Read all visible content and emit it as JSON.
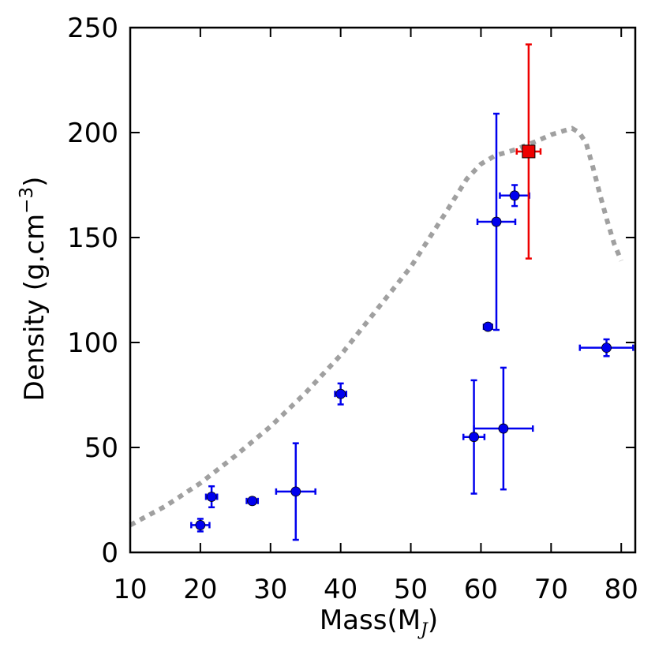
{
  "chart_data": {
    "type": "scatter",
    "title": "",
    "xlabel": {
      "main": "Mass(M",
      "sub": "J",
      "close": ")"
    },
    "ylabel": {
      "main": "Density (g.cm",
      "sup": "−3",
      "close": ")"
    },
    "xlim": [
      10,
      82
    ],
    "ylim": [
      0,
      250
    ],
    "xticks": [
      10,
      20,
      30,
      40,
      50,
      60,
      70,
      80
    ],
    "yticks": [
      0,
      50,
      100,
      150,
      200,
      250
    ],
    "grid": false,
    "series": [
      {
        "color": "#0000ee",
        "marker": "circle",
        "points": [
          {
            "x": 20.0,
            "y": 13,
            "xerr": 1.3,
            "yerr": 3
          },
          {
            "x": 21.6,
            "y": 26.5,
            "xerr": 0.8,
            "yerr": 5
          },
          {
            "x": 27.4,
            "y": 24.5,
            "xerr": 0.8,
            "yerr": 1.5
          },
          {
            "x": 33.6,
            "y": 29,
            "xerr": 2.8,
            "yerr": 23
          },
          {
            "x": 40.0,
            "y": 75.5,
            "xerr": 0.8,
            "yerr": 5
          },
          {
            "x": 59.0,
            "y": 55,
            "xerr": 1.5,
            "yerr": 27
          },
          {
            "x": 61.0,
            "y": 107.5,
            "xerr": 0.6,
            "yerr": 1
          },
          {
            "x": 62.2,
            "y": 157.5,
            "xerr": 2.7,
            "yerr": 51.5
          },
          {
            "x": 63.2,
            "y": 59,
            "xerr": 4.2,
            "yerr": 29
          },
          {
            "x": 64.8,
            "y": 170,
            "xerr": 2.1,
            "yerr": 5
          },
          {
            "x": 77.9,
            "y": 97.5,
            "xerr": 3.8,
            "yerr": 4
          }
        ]
      },
      {
        "color": "#ee0000",
        "marker": "square",
        "points": [
          {
            "x": 66.8,
            "y": 191,
            "xerr": 1.7,
            "yerr_low": 51,
            "yerr_high": 51
          }
        ]
      }
    ],
    "model_curve": {
      "color": "#a0a0a0",
      "style": "dotted",
      "x": [
        10,
        15,
        20,
        25,
        30,
        35,
        40,
        45,
        50,
        55,
        58,
        60,
        62,
        65,
        68,
        70,
        72,
        73,
        74,
        75,
        76,
        77,
        78,
        79,
        80
      ],
      "y": [
        13,
        22,
        33,
        46,
        60,
        76,
        94,
        115,
        136,
        162,
        178,
        185,
        189,
        192,
        196,
        199,
        201,
        202,
        200,
        195,
        183,
        170,
        158,
        147,
        139
      ]
    }
  }
}
